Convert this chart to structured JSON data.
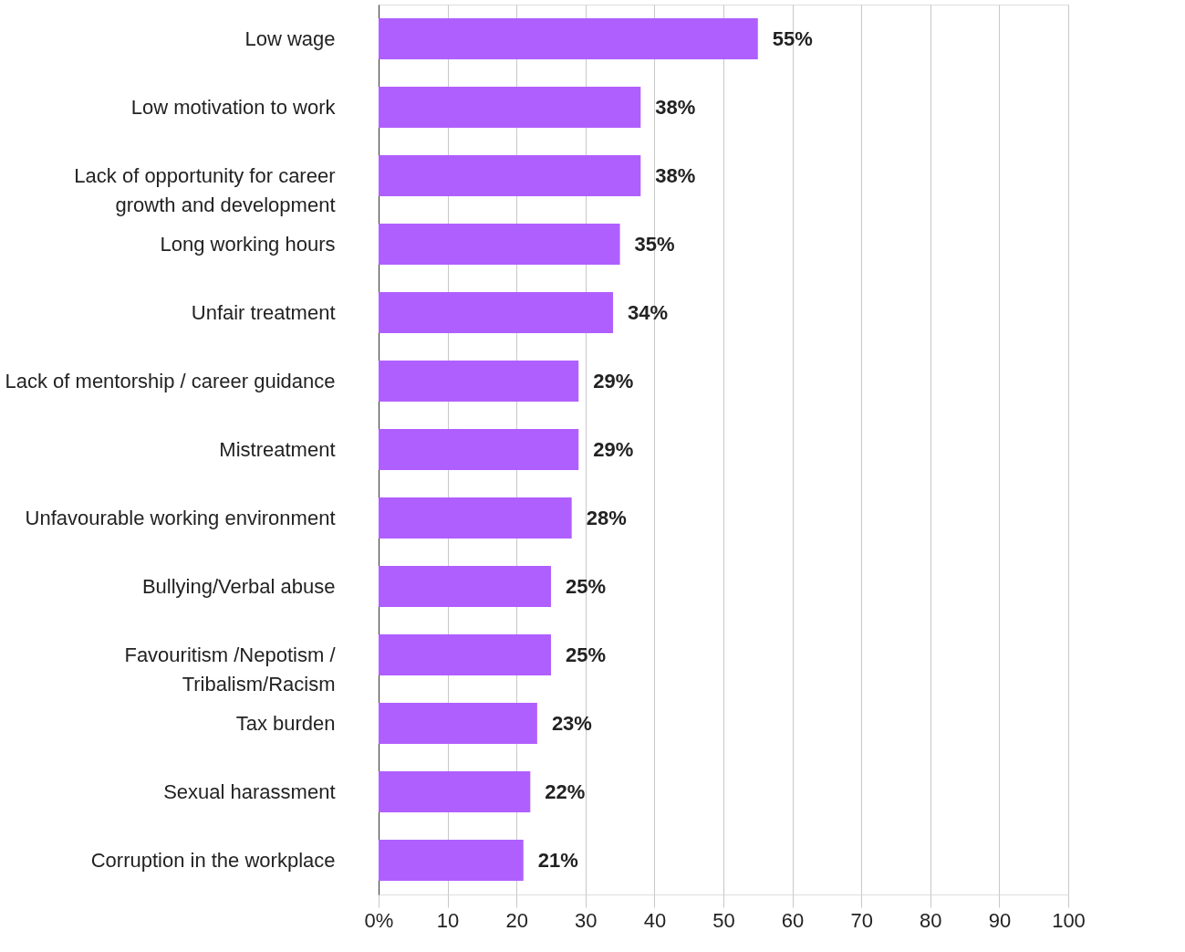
{
  "chart_data": {
    "type": "bar",
    "orientation": "horizontal",
    "categories": [
      "Low wage",
      "Low motivation to work",
      "Lack of opportunity for career\ngrowth and development",
      "Long working hours",
      "Unfair treatment",
      "Lack of mentorship / career guidance",
      "Mistreatment",
      "Unfavourable working environment",
      "Bullying/Verbal abuse",
      "Favouritism /Nepotism /\nTribalism/Racism",
      "Tax burden",
      "Sexual harassment",
      "Corruption in the workplace"
    ],
    "values": [
      55,
      38,
      38,
      35,
      34,
      29,
      29,
      28,
      25,
      25,
      23,
      22,
      21
    ],
    "value_labels": [
      "55%",
      "38%",
      "38%",
      "35%",
      "34%",
      "29%",
      "29%",
      "28%",
      "25%",
      "25%",
      "23%",
      "22%",
      "21%"
    ],
    "color": "#b05fff",
    "xlim": [
      0,
      100
    ],
    "xticks": [
      {
        "value": 0,
        "label": "0%"
      },
      10,
      20,
      30,
      40,
      50,
      60,
      70,
      80,
      90,
      100
    ],
    "grid": "x"
  }
}
